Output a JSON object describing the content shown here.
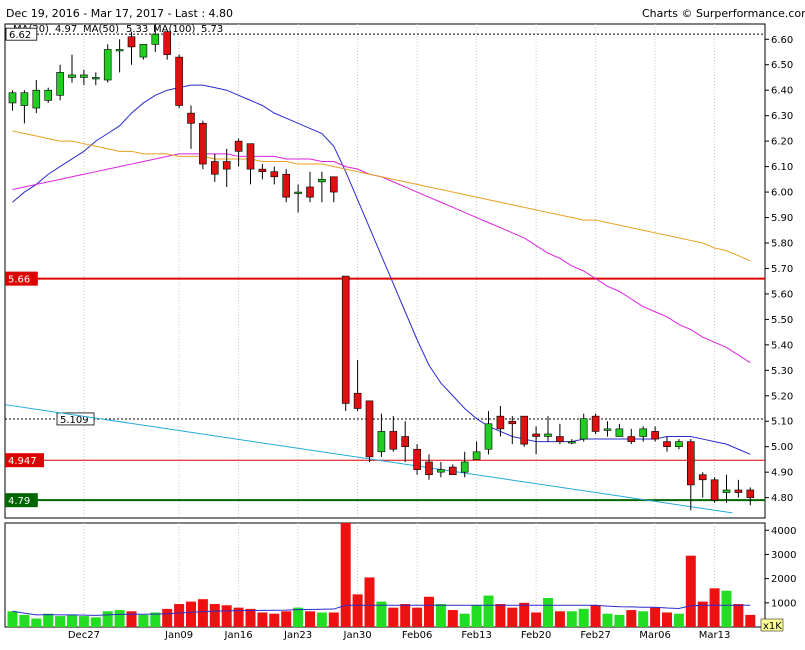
{
  "header": {
    "range_text": "Dec 19, 2016 - Mar 17, 2017 - Last : 4.80",
    "credit_text": "Charts © Surperformance.com"
  },
  "legend": [
    {
      "label": "MA(20)",
      "value": "4.97",
      "color": "#2a2acc"
    },
    {
      "label": "MA(50)",
      "value": "5.33",
      "color": "#dd22dd"
    },
    {
      "label": "MA(100)",
      "value": "5.73",
      "color": "#e8a020"
    }
  ],
  "levels": [
    {
      "value": 6.62,
      "label": "6.62",
      "color": "#000000",
      "style": "dotted",
      "label_style": "boxed-left-top"
    },
    {
      "value": 5.66,
      "label": "5.66",
      "color": "#dd0000",
      "style": "solid",
      "label_style": "filled-left"
    },
    {
      "value": 5.109,
      "label": "5.109",
      "color": "#000000",
      "style": "dotted",
      "label_style": "boxed-mid"
    },
    {
      "value": 4.947,
      "label": "4.947",
      "color": "#dd0000",
      "style": "solid-thin",
      "label_style": "filled-left"
    },
    {
      "value": 4.79,
      "label": "4.79",
      "color": "#006600",
      "style": "solid",
      "label_style": "filled-left-green"
    }
  ],
  "unit_label": "x1K",
  "chart_data": {
    "type": "candlestick",
    "price_axis": {
      "min": 4.72,
      "max": 6.66,
      "ticks": [
        4.8,
        4.9,
        5.0,
        5.1,
        5.2,
        5.3,
        5.4,
        5.5,
        5.6,
        5.7,
        5.8,
        5.9,
        6.0,
        6.1,
        6.2,
        6.3,
        6.4,
        6.5,
        6.6
      ]
    },
    "volume_axis": {
      "min": 0,
      "max": 4300,
      "ticks": [
        1000,
        2000,
        3000,
        4000
      ],
      "unit": "x1K"
    },
    "x_labels": [
      {
        "label": "Dec27",
        "index": 6
      },
      {
        "label": "Jan09",
        "index": 14
      },
      {
        "label": "Jan16",
        "index": 19
      },
      {
        "label": "Jan23",
        "index": 24
      },
      {
        "label": "Jan30",
        "index": 29
      },
      {
        "label": "Feb06",
        "index": 34
      },
      {
        "label": "Feb13",
        "index": 39
      },
      {
        "label": "Feb20",
        "index": 44
      },
      {
        "label": "Feb27",
        "index": 49
      },
      {
        "label": "Mar06",
        "index": 54
      },
      {
        "label": "Mar13",
        "index": 59
      }
    ],
    "candles": [
      {
        "o": 6.35,
        "h": 6.4,
        "l": 6.32,
        "c": 6.39,
        "v": 650
      },
      {
        "o": 6.34,
        "h": 6.4,
        "l": 6.27,
        "c": 6.39,
        "v": 500
      },
      {
        "o": 6.33,
        "h": 6.44,
        "l": 6.31,
        "c": 6.4,
        "v": 350
      },
      {
        "o": 6.36,
        "h": 6.41,
        "l": 6.35,
        "c": 6.4,
        "v": 550
      },
      {
        "o": 6.38,
        "h": 6.5,
        "l": 6.36,
        "c": 6.47,
        "v": 450
      },
      {
        "o": 6.45,
        "h": 6.54,
        "l": 6.43,
        "c": 6.46,
        "v": 500
      },
      {
        "o": 6.45,
        "h": 6.48,
        "l": 6.42,
        "c": 6.46,
        "v": 450
      },
      {
        "o": 6.45,
        "h": 6.47,
        "l": 6.42,
        "c": 6.45,
        "v": 400
      },
      {
        "o": 6.44,
        "h": 6.58,
        "l": 6.43,
        "c": 6.56,
        "v": 650
      },
      {
        "o": 6.56,
        "h": 6.6,
        "l": 6.47,
        "c": 6.56,
        "v": 700
      },
      {
        "o": 6.61,
        "h": 6.63,
        "l": 6.5,
        "c": 6.57,
        "v": 650
      },
      {
        "o": 6.53,
        "h": 6.58,
        "l": 6.52,
        "c": 6.58,
        "v": 500
      },
      {
        "o": 6.58,
        "h": 6.66,
        "l": 6.55,
        "c": 6.62,
        "v": 600
      },
      {
        "o": 6.63,
        "h": 6.63,
        "l": 6.52,
        "c": 6.54,
        "v": 750
      },
      {
        "o": 6.53,
        "h": 6.54,
        "l": 6.33,
        "c": 6.34,
        "v": 950
      },
      {
        "o": 6.31,
        "h": 6.34,
        "l": 6.17,
        "c": 6.27,
        "v": 1050
      },
      {
        "o": 6.27,
        "h": 6.28,
        "l": 6.09,
        "c": 6.11,
        "v": 1150
      },
      {
        "o": 6.12,
        "h": 6.15,
        "l": 6.04,
        "c": 6.07,
        "v": 950
      },
      {
        "o": 6.12,
        "h": 6.17,
        "l": 6.02,
        "c": 6.09,
        "v": 900
      },
      {
        "o": 6.2,
        "h": 6.21,
        "l": 6.1,
        "c": 6.16,
        "v": 800
      },
      {
        "o": 6.19,
        "h": 6.19,
        "l": 6.03,
        "c": 6.09,
        "v": 750
      },
      {
        "o": 6.09,
        "h": 6.11,
        "l": 6.05,
        "c": 6.08,
        "v": 600
      },
      {
        "o": 6.08,
        "h": 6.1,
        "l": 6.03,
        "c": 6.06,
        "v": 550
      },
      {
        "o": 6.07,
        "h": 6.09,
        "l": 5.96,
        "c": 5.98,
        "v": 650
      },
      {
        "o": 6.0,
        "h": 6.03,
        "l": 5.92,
        "c": 6.0,
        "v": 800
      },
      {
        "o": 6.02,
        "h": 6.08,
        "l": 5.96,
        "c": 5.98,
        "v": 650
      },
      {
        "o": 6.04,
        "h": 6.08,
        "l": 5.96,
        "c": 6.05,
        "v": 600
      },
      {
        "o": 6.06,
        "h": 6.06,
        "l": 5.96,
        "c": 6.0,
        "v": 600
      },
      {
        "o": 5.67,
        "h": 5.67,
        "l": 5.14,
        "c": 5.17,
        "v": 4300
      },
      {
        "o": 5.21,
        "h": 5.34,
        "l": 5.14,
        "c": 5.15,
        "v": 1350
      },
      {
        "o": 5.18,
        "h": 5.18,
        "l": 4.94,
        "c": 4.96,
        "v": 2050
      },
      {
        "o": 4.98,
        "h": 5.13,
        "l": 4.96,
        "c": 5.06,
        "v": 1050
      },
      {
        "o": 5.06,
        "h": 5.12,
        "l": 4.98,
        "c": 4.99,
        "v": 800
      },
      {
        "o": 5.04,
        "h": 5.1,
        "l": 4.94,
        "c": 5.0,
        "v": 950
      },
      {
        "o": 4.99,
        "h": 5.01,
        "l": 4.89,
        "c": 4.91,
        "v": 800
      },
      {
        "o": 4.94,
        "h": 4.97,
        "l": 4.87,
        "c": 4.89,
        "v": 1250
      },
      {
        "o": 4.9,
        "h": 4.94,
        "l": 4.88,
        "c": 4.91,
        "v": 950
      },
      {
        "o": 4.92,
        "h": 4.93,
        "l": 4.89,
        "c": 4.89,
        "v": 700
      },
      {
        "o": 4.9,
        "h": 4.98,
        "l": 4.88,
        "c": 4.94,
        "v": 550
      },
      {
        "o": 4.95,
        "h": 5.02,
        "l": 4.95,
        "c": 4.98,
        "v": 900
      },
      {
        "o": 4.99,
        "h": 5.14,
        "l": 4.97,
        "c": 5.09,
        "v": 1300
      },
      {
        "o": 5.12,
        "h": 5.16,
        "l": 5.04,
        "c": 5.07,
        "v": 950
      },
      {
        "o": 5.1,
        "h": 5.12,
        "l": 5.01,
        "c": 5.09,
        "v": 800
      },
      {
        "o": 5.12,
        "h": 5.12,
        "l": 5.0,
        "c": 5.01,
        "v": 1000
      },
      {
        "o": 5.05,
        "h": 5.08,
        "l": 4.97,
        "c": 5.04,
        "v": 600
      },
      {
        "o": 5.04,
        "h": 5.12,
        "l": 5.02,
        "c": 5.05,
        "v": 1200
      },
      {
        "o": 5.04,
        "h": 5.09,
        "l": 5.01,
        "c": 5.02,
        "v": 650
      },
      {
        "o": 5.02,
        "h": 5.03,
        "l": 5.01,
        "c": 5.02,
        "v": 650
      },
      {
        "o": 5.03,
        "h": 5.13,
        "l": 5.02,
        "c": 5.11,
        "v": 750
      },
      {
        "o": 5.12,
        "h": 5.13,
        "l": 5.05,
        "c": 5.06,
        "v": 900
      },
      {
        "o": 5.07,
        "h": 5.1,
        "l": 5.04,
        "c": 5.07,
        "v": 550
      },
      {
        "o": 5.04,
        "h": 5.09,
        "l": 5.04,
        "c": 5.07,
        "v": 500
      },
      {
        "o": 5.04,
        "h": 5.07,
        "l": 5.01,
        "c": 5.02,
        "v": 700
      },
      {
        "o": 5.04,
        "h": 5.08,
        "l": 5.02,
        "c": 5.07,
        "v": 650
      },
      {
        "o": 5.06,
        "h": 5.08,
        "l": 5.02,
        "c": 5.03,
        "v": 800
      },
      {
        "o": 5.02,
        "h": 5.04,
        "l": 4.98,
        "c": 5.0,
        "v": 600
      },
      {
        "o": 5.0,
        "h": 5.03,
        "l": 4.99,
        "c": 5.02,
        "v": 550
      },
      {
        "o": 5.02,
        "h": 5.03,
        "l": 4.75,
        "c": 4.85,
        "v": 2950
      },
      {
        "o": 4.89,
        "h": 4.9,
        "l": 4.8,
        "c": 4.87,
        "v": 1050
      },
      {
        "o": 4.87,
        "h": 4.88,
        "l": 4.78,
        "c": 4.79,
        "v": 1600
      },
      {
        "o": 4.82,
        "h": 4.89,
        "l": 4.78,
        "c": 4.83,
        "v": 1500
      },
      {
        "o": 4.83,
        "h": 4.87,
        "l": 4.8,
        "c": 4.82,
        "v": 950
      },
      {
        "o": 4.83,
        "h": 4.84,
        "l": 4.77,
        "c": 4.8,
        "v": 500
      }
    ],
    "series": [
      {
        "name": "MA(20)",
        "color": "#2a2acc",
        "values": [
          5.96,
          6.0,
          6.03,
          6.07,
          6.1,
          6.13,
          6.16,
          6.2,
          6.23,
          6.26,
          6.31,
          6.35,
          6.38,
          6.4,
          6.41,
          6.42,
          6.42,
          6.41,
          6.4,
          6.38,
          6.36,
          6.34,
          6.31,
          6.29,
          6.27,
          6.25,
          6.23,
          6.18,
          6.08,
          5.97,
          5.86,
          5.75,
          5.64,
          5.53,
          5.42,
          5.32,
          5.25,
          5.2,
          5.15,
          5.11,
          5.08,
          5.06,
          5.04,
          5.03,
          5.02,
          5.02,
          5.02,
          5.02,
          5.03,
          5.03,
          5.03,
          5.03,
          5.03,
          5.03,
          5.03,
          5.04,
          5.04,
          5.04,
          5.03,
          5.02,
          5.01,
          4.99,
          4.97
        ]
      },
      {
        "name": "MA(50)",
        "color": "#dd22dd",
        "values": [
          6.01,
          6.02,
          6.03,
          6.04,
          6.05,
          6.06,
          6.07,
          6.08,
          6.09,
          6.1,
          6.11,
          6.12,
          6.13,
          6.14,
          6.15,
          6.15,
          6.15,
          6.15,
          6.15,
          6.14,
          6.14,
          6.14,
          6.14,
          6.13,
          6.13,
          6.13,
          6.12,
          6.12,
          6.1,
          6.09,
          6.07,
          6.06,
          6.04,
          6.02,
          6.0,
          5.98,
          5.96,
          5.94,
          5.92,
          5.9,
          5.88,
          5.86,
          5.84,
          5.82,
          5.79,
          5.76,
          5.74,
          5.71,
          5.69,
          5.66,
          5.63,
          5.61,
          5.58,
          5.55,
          5.53,
          5.51,
          5.48,
          5.46,
          5.43,
          5.41,
          5.39,
          5.36,
          5.33
        ]
      },
      {
        "name": "MA(100)",
        "color": "#e8a020",
        "values": [
          6.24,
          6.23,
          6.22,
          6.21,
          6.2,
          6.2,
          6.19,
          6.18,
          6.17,
          6.16,
          6.16,
          6.15,
          6.15,
          6.15,
          6.14,
          6.14,
          6.14,
          6.13,
          6.13,
          6.13,
          6.13,
          6.12,
          6.12,
          6.12,
          6.11,
          6.11,
          6.11,
          6.1,
          6.09,
          6.08,
          6.07,
          6.06,
          6.05,
          6.04,
          6.03,
          6.02,
          6.01,
          6.0,
          5.99,
          5.98,
          5.97,
          5.96,
          5.95,
          5.94,
          5.93,
          5.92,
          5.91,
          5.9,
          5.89,
          5.89,
          5.88,
          5.87,
          5.86,
          5.85,
          5.84,
          5.83,
          5.82,
          5.81,
          5.8,
          5.78,
          5.77,
          5.75,
          5.73
        ]
      },
      {
        "name": "trend",
        "color": "#22aadd",
        "points": [
          [
            -0.6,
            5.165
          ],
          [
            60.5,
            4.74
          ]
        ]
      }
    ]
  }
}
